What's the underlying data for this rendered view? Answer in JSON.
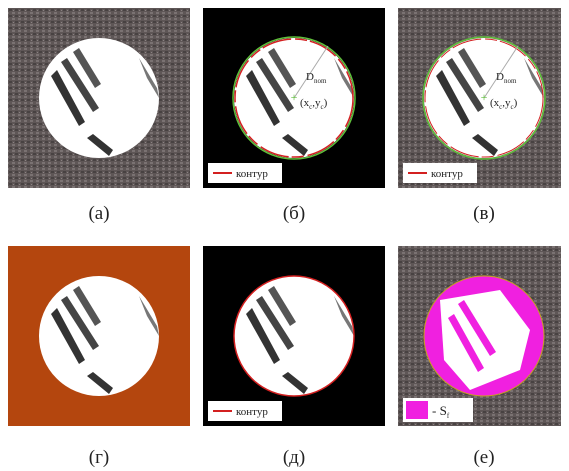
{
  "panels": [
    {
      "caption": "(а)"
    },
    {
      "caption": "(б)",
      "legend": "контур",
      "diameter": {
        "main": "D",
        "sub": "nom"
      },
      "center": [
        "(x",
        "c",
        ",y",
        "c",
        ")"
      ]
    },
    {
      "caption": "(в)",
      "legend": "контур",
      "diameter": {
        "main": "D",
        "sub": "nom"
      },
      "center": [
        "(x",
        "c",
        ",y",
        "c",
        ")"
      ]
    },
    {
      "caption": "(г)"
    },
    {
      "caption": "(д)",
      "legend": "контур"
    },
    {
      "caption": "(е)",
      "legend": {
        "main": "- S",
        "sub": "f"
      }
    }
  ]
}
